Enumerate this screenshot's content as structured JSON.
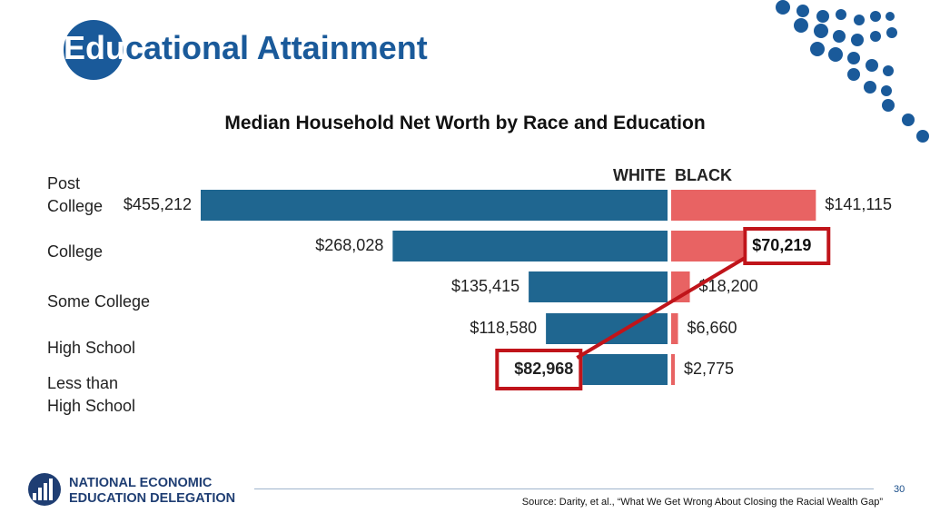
{
  "slide": {
    "title_first": "Edu",
    "title_rest": "cational Attainment",
    "page_number": "30",
    "source": "Source: Darity, et al., “What We Get Wrong About Closing the Racial Wealth Gap”",
    "colors": {
      "title_circle": "#1a5a9a",
      "title_text": "#1a5a9a",
      "dots": "#1a5a9a"
    }
  },
  "logo": {
    "line1": "NATIONAL ECONOMIC",
    "line2": "EDUCATION DELEGATION",
    "color": "#1f3e73"
  },
  "chart_data": {
    "type": "bar",
    "title": "Median Household Net Worth by Race and Education",
    "categories": [
      [
        "Post",
        "College"
      ],
      [
        "College"
      ],
      [
        "Some College"
      ],
      [
        "High School"
      ],
      [
        "Less than",
        "High School"
      ]
    ],
    "series": [
      {
        "name": "WHITE",
        "color": "#1f6690",
        "values": [
          455212,
          268028,
          135415,
          118580,
          82968
        ],
        "labels": [
          "$455,212",
          "$268,028",
          "$135,415",
          "$118,580",
          "$82,968"
        ]
      },
      {
        "name": "BLACK",
        "color": "#e86363",
        "values": [
          141115,
          70219,
          18200,
          6660,
          2775
        ],
        "labels": [
          "$141,115",
          "$70,219",
          "$18,200",
          "$6,660",
          "$2,775"
        ]
      }
    ],
    "highlight": {
      "color": "#c0141a",
      "points": [
        {
          "series": "BLACK",
          "label": "$70,219"
        },
        {
          "series": "WHITE",
          "label": "$82,968"
        }
      ]
    }
  }
}
